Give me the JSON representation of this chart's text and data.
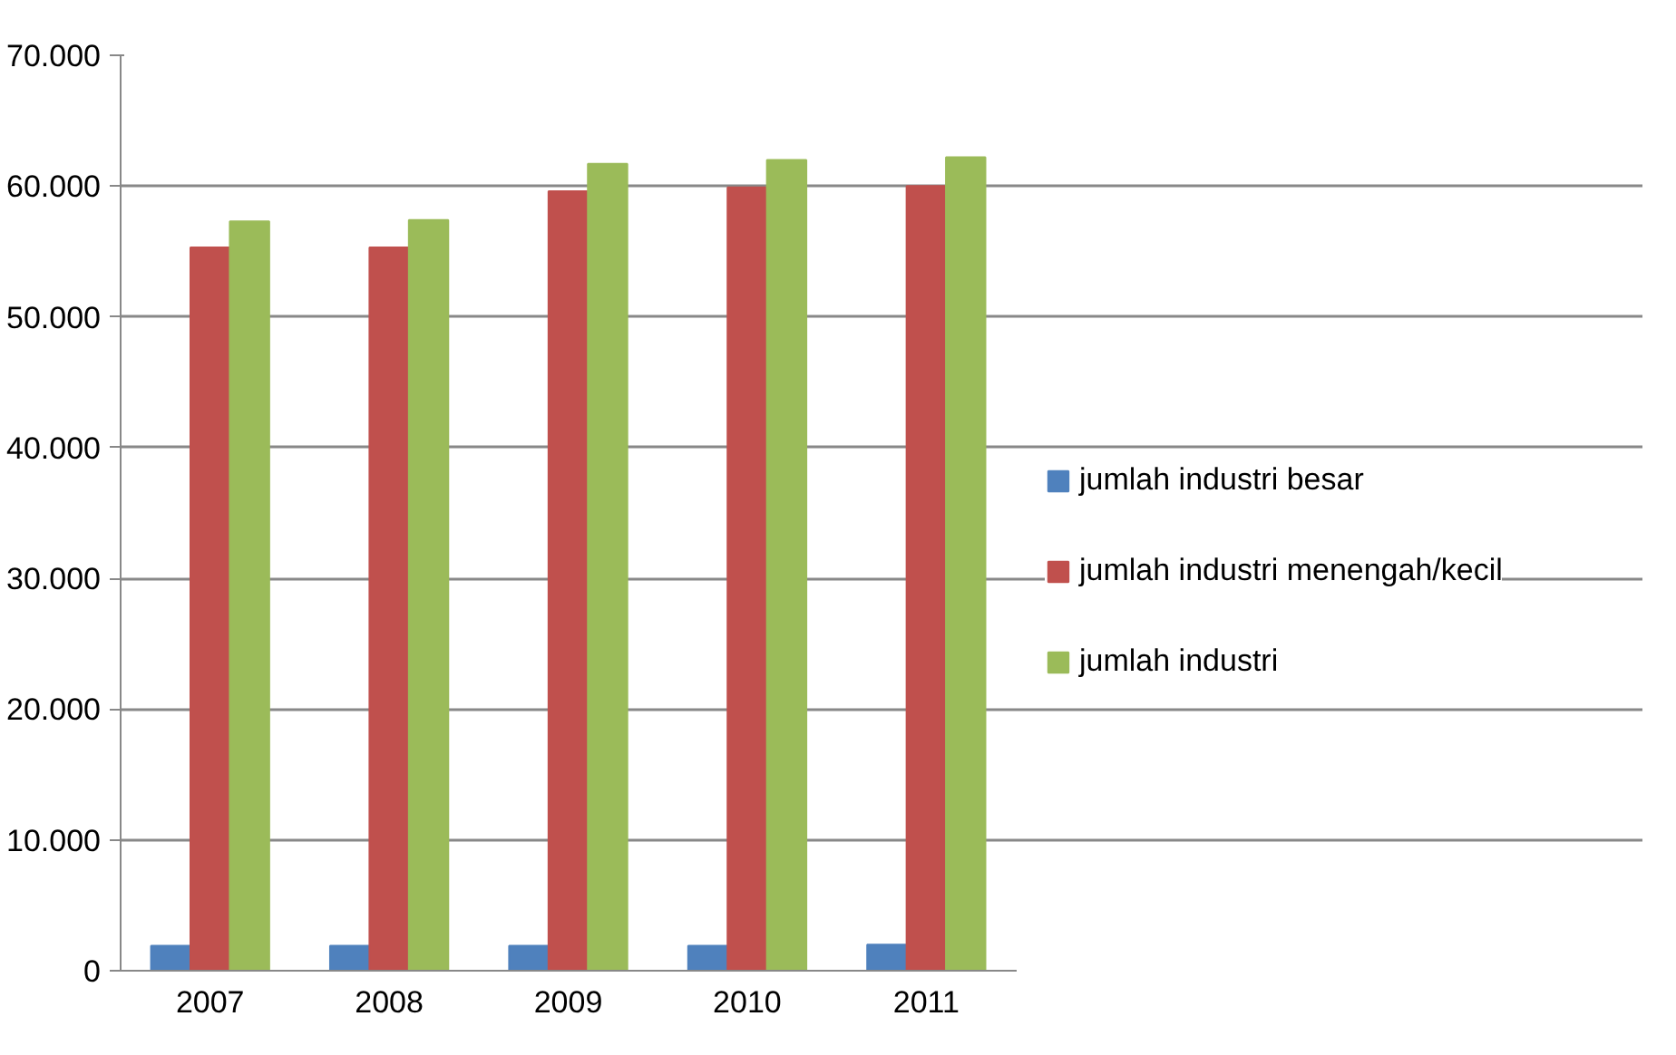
{
  "chart_data": {
    "type": "bar",
    "categories": [
      "2007",
      "2008",
      "2009",
      "2010",
      "2011"
    ],
    "series": [
      {
        "name": "jumlah industri besar",
        "color": "#4f81bd",
        "values": [
          1900,
          1900,
          1900,
          1900,
          2000
        ]
      },
      {
        "name": "jumlah industri menengah/kecil",
        "color": "#c0504d",
        "values": [
          55300,
          55300,
          59600,
          59900,
          60000
        ]
      },
      {
        "name": "jumlah industri",
        "color": "#9bbb59",
        "values": [
          57300,
          57400,
          61700,
          62000,
          62200
        ]
      }
    ],
    "ylim": [
      0,
      70000
    ],
    "yticks": [
      {
        "value": 0,
        "label": "0"
      },
      {
        "value": 10000,
        "label": "10.000"
      },
      {
        "value": 20000,
        "label": "20.000"
      },
      {
        "value": 30000,
        "label": "30.000"
      },
      {
        "value": 40000,
        "label": "40.000"
      },
      {
        "value": 50000,
        "label": "50.000"
      },
      {
        "value": 60000,
        "label": "60.000"
      },
      {
        "value": 70000,
        "label": "70.000"
      }
    ],
    "grid": "y",
    "legend": "right"
  }
}
